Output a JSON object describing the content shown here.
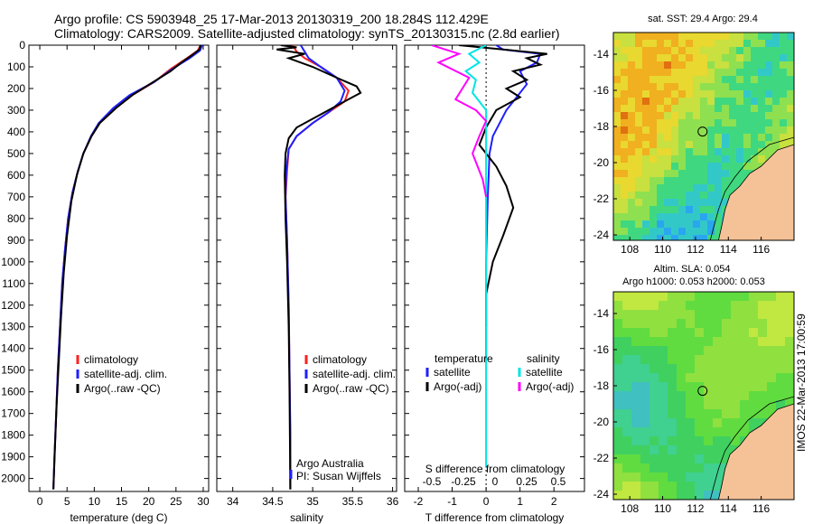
{
  "header": {
    "line1": "Argo profile: CS 5903948_25 17-Mar-2013 20130319_200 18.284S 112.429E",
    "line2": "Climatology: CARS2009. Satellite-adjusted climatology: synTS_20130315.nc (2.8d earlier)"
  },
  "footer_stamp": "IMOS 22-Mar-2013 17:00:59",
  "colors": {
    "climatology": "#ff2020",
    "satellite": "#1f1fff",
    "argo": "#000000",
    "argo_salinity_diff": "#ff00ff",
    "satellite_salinity_diff": "#00e5e5"
  },
  "chart_data": [
    {
      "type": "line",
      "id": "temperature",
      "xlabel": "temperature (deg C)",
      "ylabel": "",
      "xlim": [
        -2,
        31
      ],
      "ylim": [
        2060,
        0
      ],
      "xticks": [
        0,
        5,
        10,
        15,
        20,
        25,
        30
      ],
      "yticks": [
        0,
        100,
        200,
        300,
        400,
        500,
        600,
        700,
        800,
        900,
        1000,
        1100,
        1200,
        1300,
        1400,
        1500,
        1600,
        1700,
        1800,
        1900,
        2000
      ],
      "legend": [
        "climatology",
        "satellite-adj. clim.",
        "Argo(..raw -QC)"
      ],
      "series": [
        {
          "name": "climatology",
          "color": "#ff2020",
          "x": [
            29.5,
            29.0,
            27.0,
            24.0,
            21.0,
            17.0,
            14.0,
            11.0,
            9.5,
            8.0,
            7.0,
            6.0,
            5.2,
            4.6,
            4.1,
            3.7,
            3.3,
            3.0,
            2.7,
            2.5
          ],
          "y": [
            0,
            25,
            60,
            110,
            170,
            230,
            290,
            360,
            420,
            500,
            580,
            680,
            800,
            950,
            1100,
            1300,
            1500,
            1700,
            1900,
            2050
          ]
        },
        {
          "name": "satellite-adj. clim.",
          "color": "#1f1fff",
          "x": [
            29.8,
            29.4,
            27.5,
            24.3,
            21.0,
            16.5,
            13.5,
            10.8,
            9.4,
            8.0,
            7.0,
            6.0,
            5.2,
            4.6,
            4.1,
            3.7,
            3.3,
            3.0,
            2.7,
            2.5
          ],
          "y": [
            0,
            25,
            60,
            110,
            170,
            230,
            290,
            360,
            420,
            500,
            580,
            680,
            800,
            950,
            1100,
            1300,
            1500,
            1700,
            1900,
            2050
          ]
        },
        {
          "name": "Argo(..raw -QC)",
          "color": "#000000",
          "x": [
            29.5,
            29.3,
            28.0,
            26.0,
            24.0,
            20.5,
            17.0,
            14.0,
            11.0,
            9.5,
            8.0,
            6.8,
            5.8,
            5.0,
            4.4,
            3.9,
            3.5,
            3.1,
            2.8,
            2.5
          ],
          "y": [
            0,
            20,
            45,
            80,
            120,
            175,
            230,
            290,
            360,
            420,
            500,
            600,
            720,
            880,
            1050,
            1250,
            1450,
            1650,
            1850,
            2050
          ]
        }
      ]
    },
    {
      "type": "line",
      "id": "salinity",
      "xlabel": "salinity",
      "xlim": [
        33.8,
        36.05
      ],
      "ylim": [
        2060,
        0
      ],
      "xticks": [
        34,
        34.5,
        35,
        35.5,
        36
      ],
      "xticklabels": [
        "34",
        "34.5",
        "35",
        "35.5",
        "36"
      ],
      "legend": [
        "climatology",
        "satellite-adj. clim.",
        "Argo(..raw -QC)"
      ],
      "annotation": [
        "Argo Australia",
        "PI: Susan Wijffels"
      ],
      "series": [
        {
          "name": "climatology",
          "color": "#ff2020",
          "x": [
            34.75,
            34.8,
            34.9,
            35.1,
            35.3,
            35.45,
            35.4,
            35.2,
            35.0,
            34.8,
            34.7,
            34.68,
            34.66,
            34.68,
            34.7,
            34.71,
            34.72,
            34.72
          ],
          "y": [
            0,
            30,
            60,
            100,
            150,
            210,
            260,
            310,
            360,
            420,
            480,
            580,
            700,
            900,
            1200,
            1500,
            1800,
            2050
          ]
        },
        {
          "name": "satellite-adj. clim.",
          "color": "#1f1fff",
          "x": [
            34.85,
            34.9,
            34.95,
            35.1,
            35.3,
            35.4,
            35.35,
            35.2,
            35.0,
            34.8,
            34.7,
            34.67,
            34.66,
            34.68,
            34.7,
            34.71,
            34.72,
            34.72
          ],
          "y": [
            0,
            30,
            60,
            100,
            150,
            210,
            260,
            310,
            360,
            420,
            480,
            580,
            700,
            900,
            1200,
            1500,
            1800,
            2050
          ]
        },
        {
          "name": "Argo(..raw -QC)",
          "color": "#000000",
          "x": [
            34.6,
            34.8,
            34.55,
            34.9,
            34.7,
            35.0,
            35.3,
            35.55,
            35.6,
            35.4,
            35.2,
            35.0,
            34.8,
            34.7,
            34.66,
            34.65,
            34.66,
            34.68,
            34.7,
            34.71,
            34.72
          ],
          "y": [
            0,
            10,
            20,
            40,
            60,
            100,
            150,
            190,
            220,
            260,
            300,
            340,
            380,
            430,
            500,
            600,
            800,
            1000,
            1300,
            1600,
            2050
          ]
        }
      ]
    },
    {
      "type": "line",
      "id": "difference",
      "xlabel": "T difference from climatology",
      "xlabel_top": "S difference from climatology",
      "xlim": [
        -2.4,
        2.9
      ],
      "ylim": [
        2060,
        0
      ],
      "xticks": [
        -2,
        -1,
        0,
        1,
        2
      ],
      "xticks_top": [
        -0.5,
        -0.25,
        0,
        0.25,
        0.5
      ],
      "xticklabels_top": [
        "-0.5",
        "-0.25",
        "0",
        "0.25",
        "0.5"
      ],
      "legend_temperature": {
        "title": "temperature",
        "items": [
          "satellite",
          "Argo(-adj)"
        ]
      },
      "legend_salinity": {
        "title": "salinity",
        "items": [
          "satellite",
          "Argo(-adj)"
        ]
      },
      "series": [
        {
          "name": "temperature satellite",
          "color": "#1f1fff",
          "x": [
            0.3,
            0.5,
            1.6,
            1.5,
            1.0,
            1.2,
            0.9,
            0.6,
            0.4,
            0.2,
            0.1,
            0.05,
            0.0,
            0.0
          ],
          "y": [
            0,
            20,
            40,
            80,
            120,
            180,
            240,
            300,
            360,
            420,
            500,
            700,
            1000,
            1300
          ]
        },
        {
          "name": "temperature Argo(-adj)",
          "color": "#000000",
          "x": [
            -0.8,
            0.5,
            1.8,
            1.2,
            1.6,
            0.8,
            1.2,
            0.6,
            1.0,
            0.3,
            0.0,
            -0.2,
            0.3,
            0.6,
            0.8,
            0.5,
            0.2,
            0.0,
            0.0,
            0.0
          ],
          "y": [
            0,
            20,
            40,
            60,
            90,
            120,
            160,
            200,
            240,
            300,
            380,
            460,
            560,
            650,
            750,
            880,
            1000,
            1150,
            1300,
            1450
          ]
        },
        {
          "name": "salinity satellite",
          "color": "#00e5e5",
          "x": [
            0.0,
            -0.5,
            -0.2,
            -0.6,
            -0.3,
            -0.4,
            0.0,
            0.0,
            0.0,
            0.0
          ],
          "y": [
            0,
            40,
            80,
            120,
            160,
            220,
            300,
            500,
            1000,
            1950
          ]
        },
        {
          "name": "salinity Argo(-adj)",
          "color": "#ff00ff",
          "x": [
            -1.6,
            -0.8,
            -1.4,
            -0.5,
            -0.9,
            -0.3,
            0.0,
            -0.2,
            -0.4,
            -0.1,
            0.0
          ],
          "y": [
            0,
            40,
            80,
            150,
            250,
            300,
            350,
            420,
            500,
            620,
            700
          ]
        }
      ]
    },
    {
      "type": "heatmap",
      "id": "sst_map",
      "title": "sat. SST: 29.4  Argo: 29.4",
      "xlim": [
        107,
        118
      ],
      "ylim": [
        -24.3,
        -12.8
      ],
      "xticks": [
        108,
        110,
        112,
        114,
        116
      ],
      "yticks": [
        -24,
        -22,
        -20,
        -18,
        -16,
        -14
      ],
      "argo_position": [
        112.43,
        -18.28
      ]
    },
    {
      "type": "heatmap",
      "id": "sla_map",
      "title": "Altim. SLA: 0.054",
      "subtitle": "Argo h1000: 0.053 h2000: 0.053",
      "xlim": [
        107,
        118
      ],
      "ylim": [
        -24.3,
        -12.8
      ],
      "xticks": [
        108,
        110,
        112,
        114,
        116
      ],
      "yticks": [
        -24,
        -22,
        -20,
        -18,
        -16,
        -14
      ],
      "argo_position": [
        112.43,
        -18.28
      ]
    }
  ]
}
